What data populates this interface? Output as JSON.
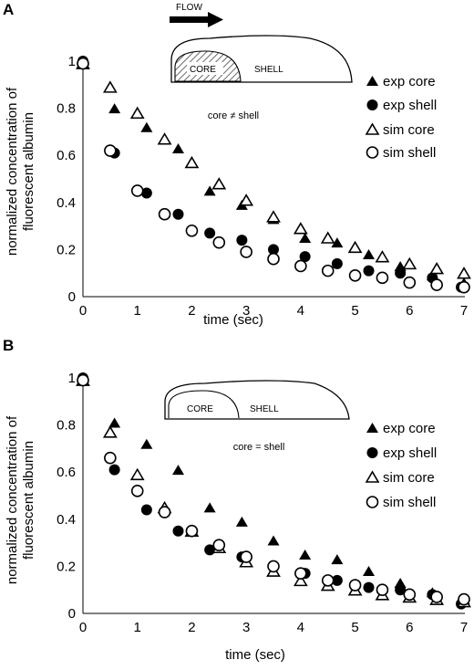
{
  "chart_data": [
    {
      "panel": "A",
      "type": "scatter",
      "xlabel": "time (sec)",
      "ylabel": "normalized concentration of fluorescent albumin",
      "xlim": [
        0,
        7
      ],
      "ylim": [
        0,
        1
      ],
      "xticks": [
        "0",
        "1",
        "2",
        "3",
        "4",
        "5",
        "6",
        "7"
      ],
      "yticks": [
        "0",
        "0.2",
        "0.4",
        "0.6",
        "0.8",
        "1"
      ],
      "legend": [
        "exp core",
        "exp shell",
        "sim core",
        "sim shell"
      ],
      "series": [
        {
          "name": "exp core",
          "x": [
            0,
            0.58,
            1.17,
            1.75,
            2.33,
            2.92,
            3.5,
            4.08,
            4.67,
            5.25,
            5.83,
            6.42,
            7.0
          ],
          "y": [
            1.0,
            0.8,
            0.72,
            0.63,
            0.45,
            0.39,
            0.33,
            0.25,
            0.23,
            0.18,
            0.13,
            0.09,
            0.06
          ]
        },
        {
          "name": "exp shell",
          "x": [
            0,
            0.58,
            1.17,
            1.75,
            2.33,
            2.92,
            3.5,
            4.08,
            4.67,
            5.25,
            5.83,
            6.42,
            6.95
          ],
          "y": [
            1.0,
            0.61,
            0.44,
            0.35,
            0.27,
            0.24,
            0.2,
            0.17,
            0.14,
            0.11,
            0.1,
            0.08,
            0.04
          ]
        },
        {
          "name": "sim core",
          "x": [
            0,
            0.5,
            1.0,
            1.5,
            2.0,
            2.5,
            3.0,
            3.5,
            4.0,
            4.5,
            5.0,
            5.5,
            6.0,
            6.5,
            7.0
          ],
          "y": [
            0.99,
            0.89,
            0.78,
            0.67,
            0.57,
            0.48,
            0.41,
            0.34,
            0.29,
            0.25,
            0.21,
            0.17,
            0.14,
            0.12,
            0.1
          ]
        },
        {
          "name": "sim shell",
          "x": [
            0,
            0.5,
            1.0,
            1.5,
            2.0,
            2.5,
            3.0,
            3.5,
            4.0,
            4.5,
            5.0,
            5.5,
            6.0,
            6.5,
            7.0
          ],
          "y": [
            0.99,
            0.62,
            0.45,
            0.35,
            0.28,
            0.23,
            0.19,
            0.16,
            0.13,
            0.11,
            0.09,
            0.08,
            0.06,
            0.05,
            0.04
          ]
        }
      ],
      "annotations": {
        "flow_label": "FLOW",
        "core_label": "CORE",
        "shell_label": "SHELL",
        "condition": "core ≠ shell"
      }
    },
    {
      "panel": "B",
      "type": "scatter",
      "xlabel": "time (sec)",
      "ylabel": "normalized concentration of fluorescent albumin",
      "xlim": [
        0,
        7
      ],
      "ylim": [
        0,
        1
      ],
      "xticks": [
        "0",
        "1",
        "2",
        "3",
        "4",
        "5",
        "6",
        "7"
      ],
      "yticks": [
        "0",
        "0.2",
        "0.4",
        "0.6",
        "0.8",
        "1"
      ],
      "legend": [
        "exp core",
        "exp shell",
        "sim core",
        "sim shell"
      ],
      "series": [
        {
          "name": "exp core",
          "x": [
            0,
            0.58,
            1.17,
            1.75,
            2.33,
            2.92,
            3.5,
            4.08,
            4.67,
            5.25,
            5.83,
            6.42,
            7.0
          ],
          "y": [
            1.0,
            0.81,
            0.72,
            0.61,
            0.45,
            0.39,
            0.31,
            0.25,
            0.23,
            0.18,
            0.13,
            0.09,
            0.06
          ]
        },
        {
          "name": "exp shell",
          "x": [
            0,
            0.58,
            1.17,
            1.75,
            2.33,
            2.92,
            3.5,
            4.08,
            4.67,
            5.25,
            5.83,
            6.42,
            6.95
          ],
          "y": [
            1.0,
            0.61,
            0.44,
            0.35,
            0.27,
            0.24,
            0.2,
            0.17,
            0.14,
            0.11,
            0.1,
            0.08,
            0.04
          ]
        },
        {
          "name": "sim core",
          "x": [
            0,
            0.5,
            1.0,
            1.5,
            2.0,
            2.5,
            3.0,
            3.5,
            4.0,
            4.5,
            5.0,
            5.5,
            6.0,
            6.5,
            7.0
          ],
          "y": [
            0.99,
            0.77,
            0.59,
            0.45,
            0.35,
            0.28,
            0.22,
            0.18,
            0.14,
            0.12,
            0.1,
            0.08,
            0.07,
            0.06,
            0.05
          ]
        },
        {
          "name": "sim shell",
          "x": [
            0,
            0.5,
            1.0,
            1.5,
            2.0,
            2.5,
            3.0,
            3.5,
            4.0,
            4.5,
            5.0,
            5.5,
            6.0,
            6.5,
            7.0
          ],
          "y": [
            0.99,
            0.66,
            0.52,
            0.43,
            0.35,
            0.29,
            0.24,
            0.2,
            0.17,
            0.14,
            0.12,
            0.1,
            0.08,
            0.07,
            0.06
          ]
        }
      ],
      "annotations": {
        "core_label": "CORE",
        "shell_label": "SHELL",
        "condition": "core = shell"
      }
    }
  ]
}
